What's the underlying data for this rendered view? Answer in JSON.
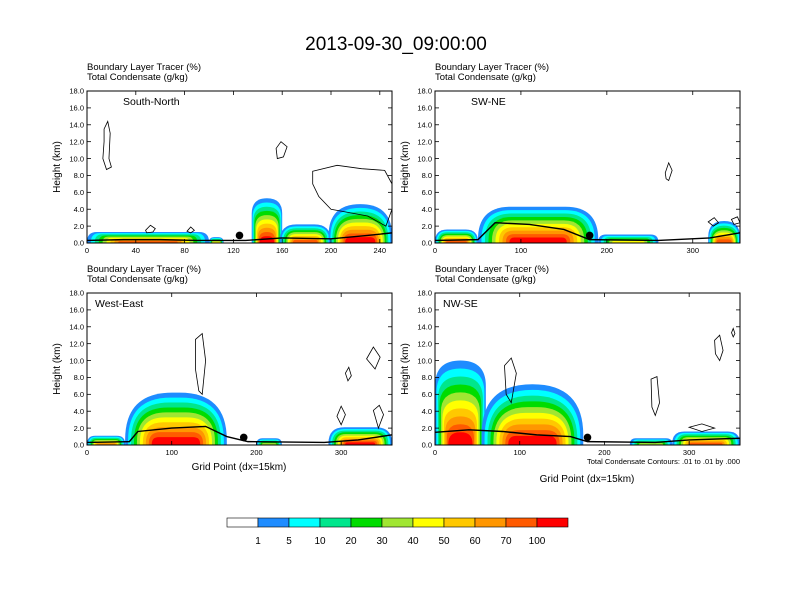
{
  "figure": {
    "title": "2013-09-30_09:00:00",
    "contour_note": "Total Condensate Contours: .01 to .01 by .000"
  },
  "colorbar": {
    "levels": [
      "1",
      "5",
      "10",
      "20",
      "30",
      "40",
      "50",
      "60",
      "70",
      "100"
    ],
    "colors": [
      "#ffffff",
      "#1e8cff",
      "#00ffff",
      "#00e68c",
      "#00dc00",
      "#a0e632",
      "#ffff00",
      "#ffc800",
      "#ff9600",
      "#ff5a00",
      "#ff0000"
    ]
  },
  "chart_data": [
    {
      "type": "filled-contour",
      "title_line1": "Boundary Layer Tracer   (%)",
      "title_line2": "Total Condensate   (g/kg)",
      "inner_label": "South-North",
      "xlabel": "",
      "ylabel": "Height (km)",
      "xlim": [
        0,
        250
      ],
      "ylim": [
        0,
        18
      ],
      "xticks": [
        0,
        40,
        80,
        120,
        160,
        200,
        240
      ],
      "yticks": [
        "0.0",
        "2.0",
        "4.0",
        "6.0",
        "8.0",
        "10.0",
        "12.0",
        "14.0",
        "16.0",
        "18.0"
      ],
      "marker": {
        "x": 125,
        "y": 0.9
      },
      "tracer_cells": [
        {
          "x": [
            0,
            100
          ],
          "top": 1.3,
          "peak": 75
        },
        {
          "x": [
            100,
            112
          ],
          "top": 0.7,
          "peak": 40
        },
        {
          "x": [
            135,
            160
          ],
          "top": 5.3,
          "peak": 100
        },
        {
          "x": [
            158,
            200
          ],
          "top": 2.2,
          "peak": 85
        },
        {
          "x": [
            198,
            250
          ],
          "top": 4.6,
          "peak": 100
        }
      ],
      "terrain": [
        [
          0,
          0.3
        ],
        [
          30,
          0.4
        ],
        [
          60,
          0.4
        ],
        [
          90,
          0.3
        ],
        [
          130,
          0.3
        ],
        [
          160,
          0.6
        ],
        [
          200,
          0.5
        ],
        [
          230,
          0.9
        ],
        [
          250,
          1.2
        ]
      ],
      "condensate_contours": [
        [
          [
            14,
            13.5
          ],
          [
            17,
            14.4
          ],
          [
            19,
            13
          ],
          [
            18,
            10
          ],
          [
            20,
            9
          ],
          [
            16,
            8.7
          ],
          [
            13,
            10
          ],
          [
            14,
            12
          ]
        ],
        [
          [
            155,
            11.2
          ],
          [
            159,
            12
          ],
          [
            164,
            11.4
          ],
          [
            161,
            10.2
          ],
          [
            156,
            10
          ]
        ],
        [
          [
            185,
            8.5
          ],
          [
            205,
            9.2
          ],
          [
            225,
            8.8
          ],
          [
            244,
            8.6
          ],
          [
            250,
            7
          ],
          [
            250,
            4
          ],
          [
            245,
            2
          ],
          [
            230,
            3.2
          ],
          [
            200,
            4
          ],
          [
            190,
            5.5
          ],
          [
            185,
            7
          ]
        ],
        [
          [
            48,
            1.5
          ],
          [
            52,
            2.1
          ],
          [
            56,
            1.7
          ],
          [
            54,
            1.3
          ],
          [
            49,
            1.2
          ]
        ],
        [
          [
            82,
            1.4
          ],
          [
            85,
            1.9
          ],
          [
            88,
            1.5
          ],
          [
            85,
            1.2
          ]
        ]
      ]
    },
    {
      "type": "filled-contour",
      "title_line1": "Boundary Layer Tracer   (%)",
      "title_line2": "Total Condensate   (g/kg)",
      "inner_label": "SW-NE",
      "xlabel": "",
      "ylabel": "Height (km)",
      "xlim": [
        0,
        355
      ],
      "ylim": [
        0,
        18
      ],
      "xticks": [
        0,
        100,
        200,
        300
      ],
      "yticks": [
        "0.0",
        "2.0",
        "4.0",
        "6.0",
        "8.0",
        "10.0",
        "12.0",
        "14.0",
        "16.0",
        "18.0"
      ],
      "marker": {
        "x": 180,
        "y": 0.9
      },
      "tracer_cells": [
        {
          "x": [
            0,
            50
          ],
          "top": 1.6,
          "peak": 70
        },
        {
          "x": [
            50,
            190
          ],
          "top": 4.3,
          "peak": 100
        },
        {
          "x": [
            190,
            260
          ],
          "top": 1.0,
          "peak": 40
        },
        {
          "x": [
            318,
            355
          ],
          "top": 2.6,
          "peak": 95
        }
      ],
      "terrain": [
        [
          0,
          0.3
        ],
        [
          50,
          0.4
        ],
        [
          70,
          2.4
        ],
        [
          110,
          2.2
        ],
        [
          150,
          1.6
        ],
        [
          180,
          0.4
        ],
        [
          260,
          0.3
        ],
        [
          320,
          0.6
        ],
        [
          355,
          1.2
        ]
      ],
      "condensate_contours": [
        [
          [
            268,
            8.3
          ],
          [
            272,
            9.5
          ],
          [
            276,
            8.6
          ],
          [
            272,
            7.4
          ],
          [
            269,
            7.6
          ]
        ],
        [
          [
            318,
            2.5
          ],
          [
            325,
            3
          ],
          [
            330,
            2.4
          ],
          [
            324,
            2
          ]
        ],
        [
          [
            345,
            2.8
          ],
          [
            352,
            3.1
          ],
          [
            355,
            2.4
          ],
          [
            348,
            2.2
          ]
        ]
      ]
    },
    {
      "type": "filled-contour",
      "title_line1": "Boundary Layer Tracer   (%)",
      "title_line2": "Total Condensate   (g/kg)",
      "inner_label": "West-East",
      "xlabel": "Grid Point (dx=15km)",
      "ylabel": "Height (km)",
      "xlim": [
        0,
        360
      ],
      "ylim": [
        0,
        18
      ],
      "xticks": [
        0,
        100,
        200,
        300
      ],
      "yticks": [
        "0.0",
        "2.0",
        "4.0",
        "6.0",
        "8.0",
        "10.0",
        "12.0",
        "14.0",
        "16.0",
        "18.0"
      ],
      "marker": {
        "x": 185,
        "y": 0.9
      },
      "tracer_cells": [
        {
          "x": [
            0,
            45
          ],
          "top": 1.1,
          "peak": 60
        },
        {
          "x": [
            45,
            165
          ],
          "top": 6.2,
          "peak": 100
        },
        {
          "x": [
            200,
            230
          ],
          "top": 0.8,
          "peak": 30
        },
        {
          "x": [
            285,
            360
          ],
          "top": 2.1,
          "peak": 100
        }
      ],
      "terrain": [
        [
          0,
          0.3
        ],
        [
          50,
          0.4
        ],
        [
          60,
          1.6
        ],
        [
          100,
          2.0
        ],
        [
          140,
          2.2
        ],
        [
          165,
          1.0
        ],
        [
          190,
          0.4
        ],
        [
          280,
          0.3
        ],
        [
          320,
          0.6
        ],
        [
          360,
          1.2
        ]
      ],
      "condensate_contours": [
        [
          [
            128,
            12.5
          ],
          [
            136,
            13.2
          ],
          [
            140,
            10
          ],
          [
            136,
            6
          ],
          [
            132,
            6.4
          ],
          [
            128,
            9
          ]
        ],
        [
          [
            305,
            8.5
          ],
          [
            309,
            9.2
          ],
          [
            312,
            8.2
          ],
          [
            308,
            7.6
          ]
        ],
        [
          [
            295,
            3.4
          ],
          [
            300,
            4.6
          ],
          [
            305,
            3.6
          ],
          [
            300,
            2.4
          ]
        ],
        [
          [
            330,
            10.2
          ],
          [
            338,
            11.6
          ],
          [
            346,
            10.4
          ],
          [
            340,
            9
          ]
        ],
        [
          [
            338,
            4.1
          ],
          [
            345,
            4.7
          ],
          [
            350,
            3.6
          ],
          [
            344,
            2
          ]
        ]
      ]
    },
    {
      "type": "filled-contour",
      "title_line1": "Boundary Layer Tracer   (%)",
      "title_line2": "Total Condensate   (g/kg)",
      "inner_label": "NW-SE",
      "xlabel": "Grid Point (dx=15km)",
      "ylabel": "Height (km)",
      "xlim": [
        0,
        360
      ],
      "ylim": [
        0,
        18
      ],
      "xticks": [
        0,
        100,
        200,
        300
      ],
      "yticks": [
        "0.0",
        "2.0",
        "4.0",
        "6.0",
        "8.0",
        "10.0",
        "12.0",
        "14.0",
        "16.0",
        "18.0"
      ],
      "marker": {
        "x": 180,
        "y": 0.9
      },
      "tracer_cells": [
        {
          "x": [
            0,
            60
          ],
          "top": 10.0,
          "peak": 100
        },
        {
          "x": [
            55,
            175
          ],
          "top": 7.2,
          "peak": 100
        },
        {
          "x": [
            230,
            280
          ],
          "top": 0.8,
          "peak": 30
        },
        {
          "x": [
            280,
            360
          ],
          "top": 1.6,
          "peak": 90
        }
      ],
      "terrain": [
        [
          0,
          1.5
        ],
        [
          40,
          1.8
        ],
        [
          80,
          1.6
        ],
        [
          120,
          1.2
        ],
        [
          160,
          1.0
        ],
        [
          180,
          0.4
        ],
        [
          260,
          0.3
        ],
        [
          300,
          0.6
        ],
        [
          360,
          0.8
        ]
      ],
      "condensate_contours": [
        [
          [
            82,
            9.4
          ],
          [
            90,
            10.3
          ],
          [
            96,
            8.5
          ],
          [
            90,
            5
          ],
          [
            84,
            6
          ]
        ],
        [
          [
            255,
            7.8
          ],
          [
            262,
            8.1
          ],
          [
            265,
            5
          ],
          [
            260,
            3.5
          ],
          [
            256,
            4.5
          ]
        ],
        [
          [
            330,
            12.4
          ],
          [
            336,
            13
          ],
          [
            340,
            11.2
          ],
          [
            336,
            10
          ],
          [
            331,
            10.8
          ]
        ],
        [
          [
            350,
            13.3
          ],
          [
            352,
            13.8
          ],
          [
            354,
            13.2
          ],
          [
            352,
            12.8
          ]
        ],
        [
          [
            300,
            2.1
          ],
          [
            315,
            2.5
          ],
          [
            330,
            2
          ],
          [
            315,
            1.6
          ]
        ]
      ]
    }
  ]
}
